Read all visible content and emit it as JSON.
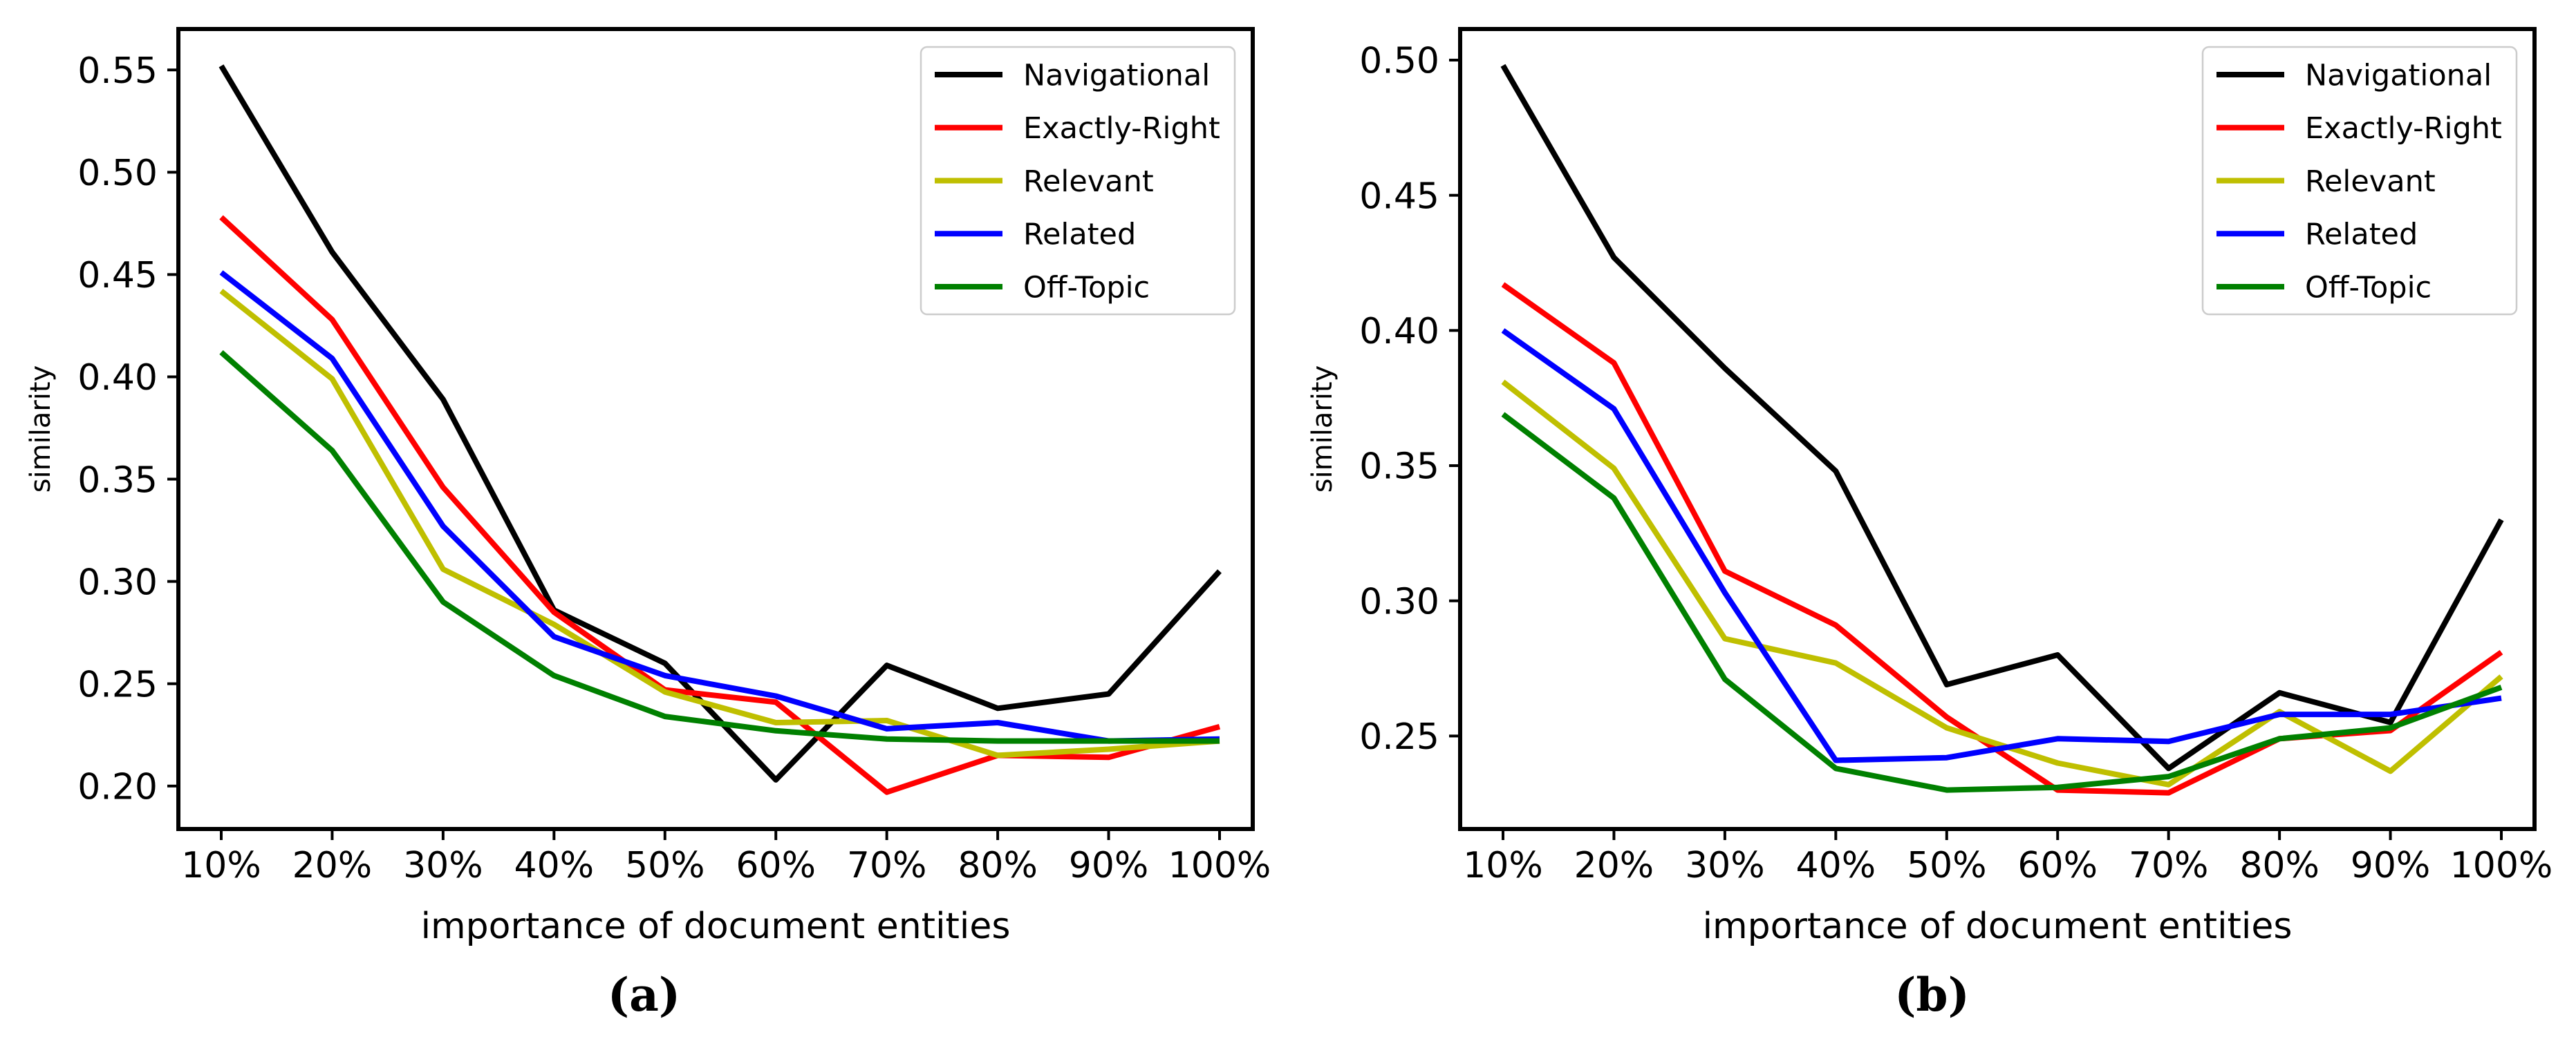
{
  "figure": {
    "background": "#ffffff",
    "captions": [
      {
        "id": "a",
        "label": "(a)"
      },
      {
        "id": "b",
        "label": "(b)"
      }
    ]
  },
  "chart_data": [
    {
      "panel": "a",
      "type": "line",
      "title": "",
      "xlabel": "importance of document entities",
      "ylabel": "similarity",
      "categories": [
        "10%",
        "20%",
        "30%",
        "40%",
        "50%",
        "60%",
        "70%",
        "80%",
        "90%",
        "100%"
      ],
      "ytick_labels": [
        "0.55",
        "0.50",
        "0.45",
        "0.40",
        "0.35",
        "0.30",
        "0.25",
        "0.20"
      ],
      "ytick_values": [
        0.55,
        0.5,
        0.45,
        0.4,
        0.35,
        0.3,
        0.25,
        0.2
      ],
      "ylim": [
        0.179,
        0.57
      ],
      "grid": false,
      "legend_position": "upper right",
      "series": [
        {
          "name": "Navigational",
          "color": "#000000",
          "values": [
            0.552,
            0.461,
            0.389,
            0.286,
            0.26,
            0.203,
            0.259,
            0.238,
            0.245,
            0.305
          ]
        },
        {
          "name": "Exactly-Right",
          "color": "#ff0000",
          "values": [
            0.478,
            0.428,
            0.346,
            0.285,
            0.247,
            0.241,
            0.197,
            0.215,
            0.214,
            0.229
          ]
        },
        {
          "name": "Relevant",
          "color": "#bfbf00",
          "values": [
            0.442,
            0.399,
            0.306,
            0.279,
            0.246,
            0.231,
            0.232,
            0.215,
            0.218,
            0.222
          ]
        },
        {
          "name": "Related",
          "color": "#0000ff",
          "values": [
            0.451,
            0.409,
            0.327,
            0.273,
            0.254,
            0.244,
            0.228,
            0.231,
            0.222,
            0.223
          ]
        },
        {
          "name": "Off-Topic",
          "color": "#008000",
          "values": [
            0.412,
            0.364,
            0.29,
            0.254,
            0.234,
            0.227,
            0.223,
            0.222,
            0.222,
            0.222
          ]
        }
      ]
    },
    {
      "panel": "b",
      "type": "line",
      "title": "",
      "xlabel": "importance of document entities",
      "ylabel": "similarity",
      "categories": [
        "10%",
        "20%",
        "30%",
        "40%",
        "50%",
        "60%",
        "70%",
        "80%",
        "90%",
        "100%"
      ],
      "ytick_labels": [
        "0.50",
        "0.45",
        "0.40",
        "0.35",
        "0.30",
        "0.25"
      ],
      "ytick_values": [
        0.5,
        0.45,
        0.4,
        0.35,
        0.3,
        0.25
      ],
      "ylim": [
        0.2156,
        0.5115
      ],
      "grid": false,
      "legend_position": "upper right",
      "series": [
        {
          "name": "Navigational",
          "color": "#000000",
          "values": [
            0.498,
            0.427,
            0.386,
            0.348,
            0.269,
            0.28,
            0.238,
            0.266,
            0.255,
            0.33
          ]
        },
        {
          "name": "Exactly-Right",
          "color": "#ff0000",
          "values": [
            0.417,
            0.388,
            0.311,
            0.291,
            0.257,
            0.23,
            0.229,
            0.249,
            0.252,
            0.281
          ]
        },
        {
          "name": "Relevant",
          "color": "#bfbf00",
          "values": [
            0.381,
            0.349,
            0.286,
            0.277,
            0.253,
            0.24,
            0.232,
            0.259,
            0.237,
            0.272
          ]
        },
        {
          "name": "Related",
          "color": "#0000ff",
          "values": [
            0.4,
            0.371,
            0.303,
            0.241,
            0.242,
            0.249,
            0.248,
            0.258,
            0.258,
            0.264
          ]
        },
        {
          "name": "Off-Topic",
          "color": "#008000",
          "values": [
            0.369,
            0.338,
            0.271,
            0.238,
            0.23,
            0.231,
            0.235,
            0.249,
            0.253,
            0.268
          ]
        }
      ]
    }
  ]
}
